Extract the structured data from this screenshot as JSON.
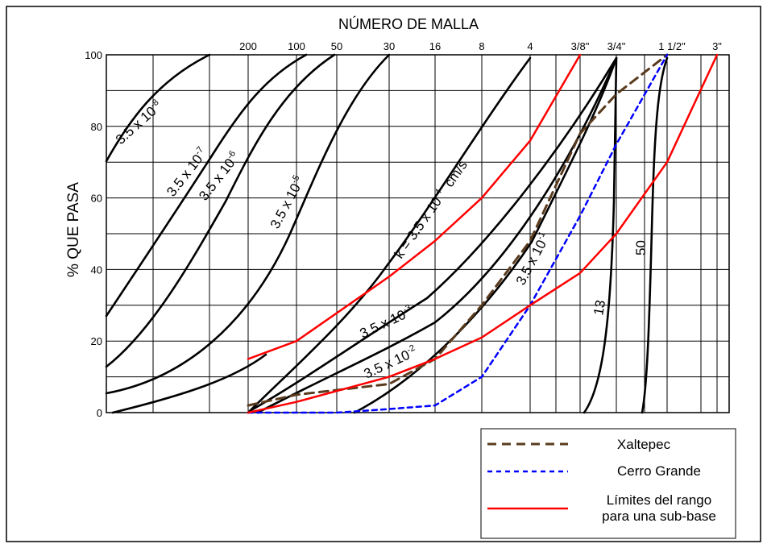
{
  "chart_data": {
    "type": "line",
    "title": "NÚMERO DE MALLA",
    "xlabel": "",
    "ylabel": "% QUE PASA",
    "ylim": [
      0,
      100
    ],
    "y_ticks": [
      "0",
      "20",
      "40",
      "60",
      "80",
      "100"
    ],
    "x_ticks": [
      "200",
      "100",
      "50",
      "30",
      "16",
      "8",
      "4",
      "3/8\"",
      "3/4\"",
      "1 1/2\"",
      "3\""
    ],
    "grid": true,
    "legend_position": "bottom-right",
    "colors": {
      "xaltepec": "#5a3b1e",
      "cerro_grande": "#0000ff",
      "limits": "#ff0000",
      "k_curves": "#000000"
    },
    "series": [
      {
        "name": "Xaltepec",
        "style": "dashed",
        "x": [
          "200",
          "100",
          "30",
          "16",
          "8",
          "4",
          "3/8\"",
          "3/4\"",
          "1 1/2\""
        ],
        "values": [
          2,
          5,
          8,
          15,
          30,
          48,
          78,
          89,
          100
        ]
      },
      {
        "name": "Cerro Grande",
        "style": "dotted",
        "x": [
          "200",
          "100",
          "50",
          "30",
          "16",
          "8",
          "4",
          "3/8\"",
          "3/4\"",
          "1 1/2\""
        ],
        "values": [
          0,
          0,
          0,
          1,
          2,
          10,
          30,
          55,
          75,
          100
        ]
      },
      {
        "name": "Límites del rango para una sub-base",
        "style": "solid",
        "x": [
          "200",
          "100",
          "30",
          "16",
          "8",
          "4",
          "3/8\""
        ],
        "values": [
          15,
          20,
          38,
          48,
          60,
          76,
          100
        ]
      },
      {
        "name": "Límites del rango para una sub-base",
        "style": "solid",
        "x": [
          "200",
          "100",
          "30",
          "16",
          "8",
          "4",
          "3/8\"",
          "3/4\"",
          "1 1/2\"",
          "3\""
        ],
        "values": [
          0,
          3,
          10,
          15,
          21,
          30,
          39,
          50,
          70,
          100
        ]
      }
    ],
    "k_curve_labels": [
      {
        "text": "3.5 x 10",
        "exp": "-8"
      },
      {
        "text": "3.5 x 10",
        "exp": "-7"
      },
      {
        "text": "3.5 x 10",
        "exp": "-6"
      },
      {
        "text": "3.5 x 10",
        "exp": "-5"
      },
      {
        "text": "k = 3.5 x 10",
        "exp": "-4",
        "suffix": "cm/s"
      },
      {
        "text": "3.5 x 10",
        "exp": "-3"
      },
      {
        "text": "3.5 x 10",
        "exp": "-2"
      },
      {
        "text": "3.5 x 10",
        "exp": "-1"
      },
      {
        "text": "13"
      },
      {
        "text": "50"
      }
    ]
  }
}
